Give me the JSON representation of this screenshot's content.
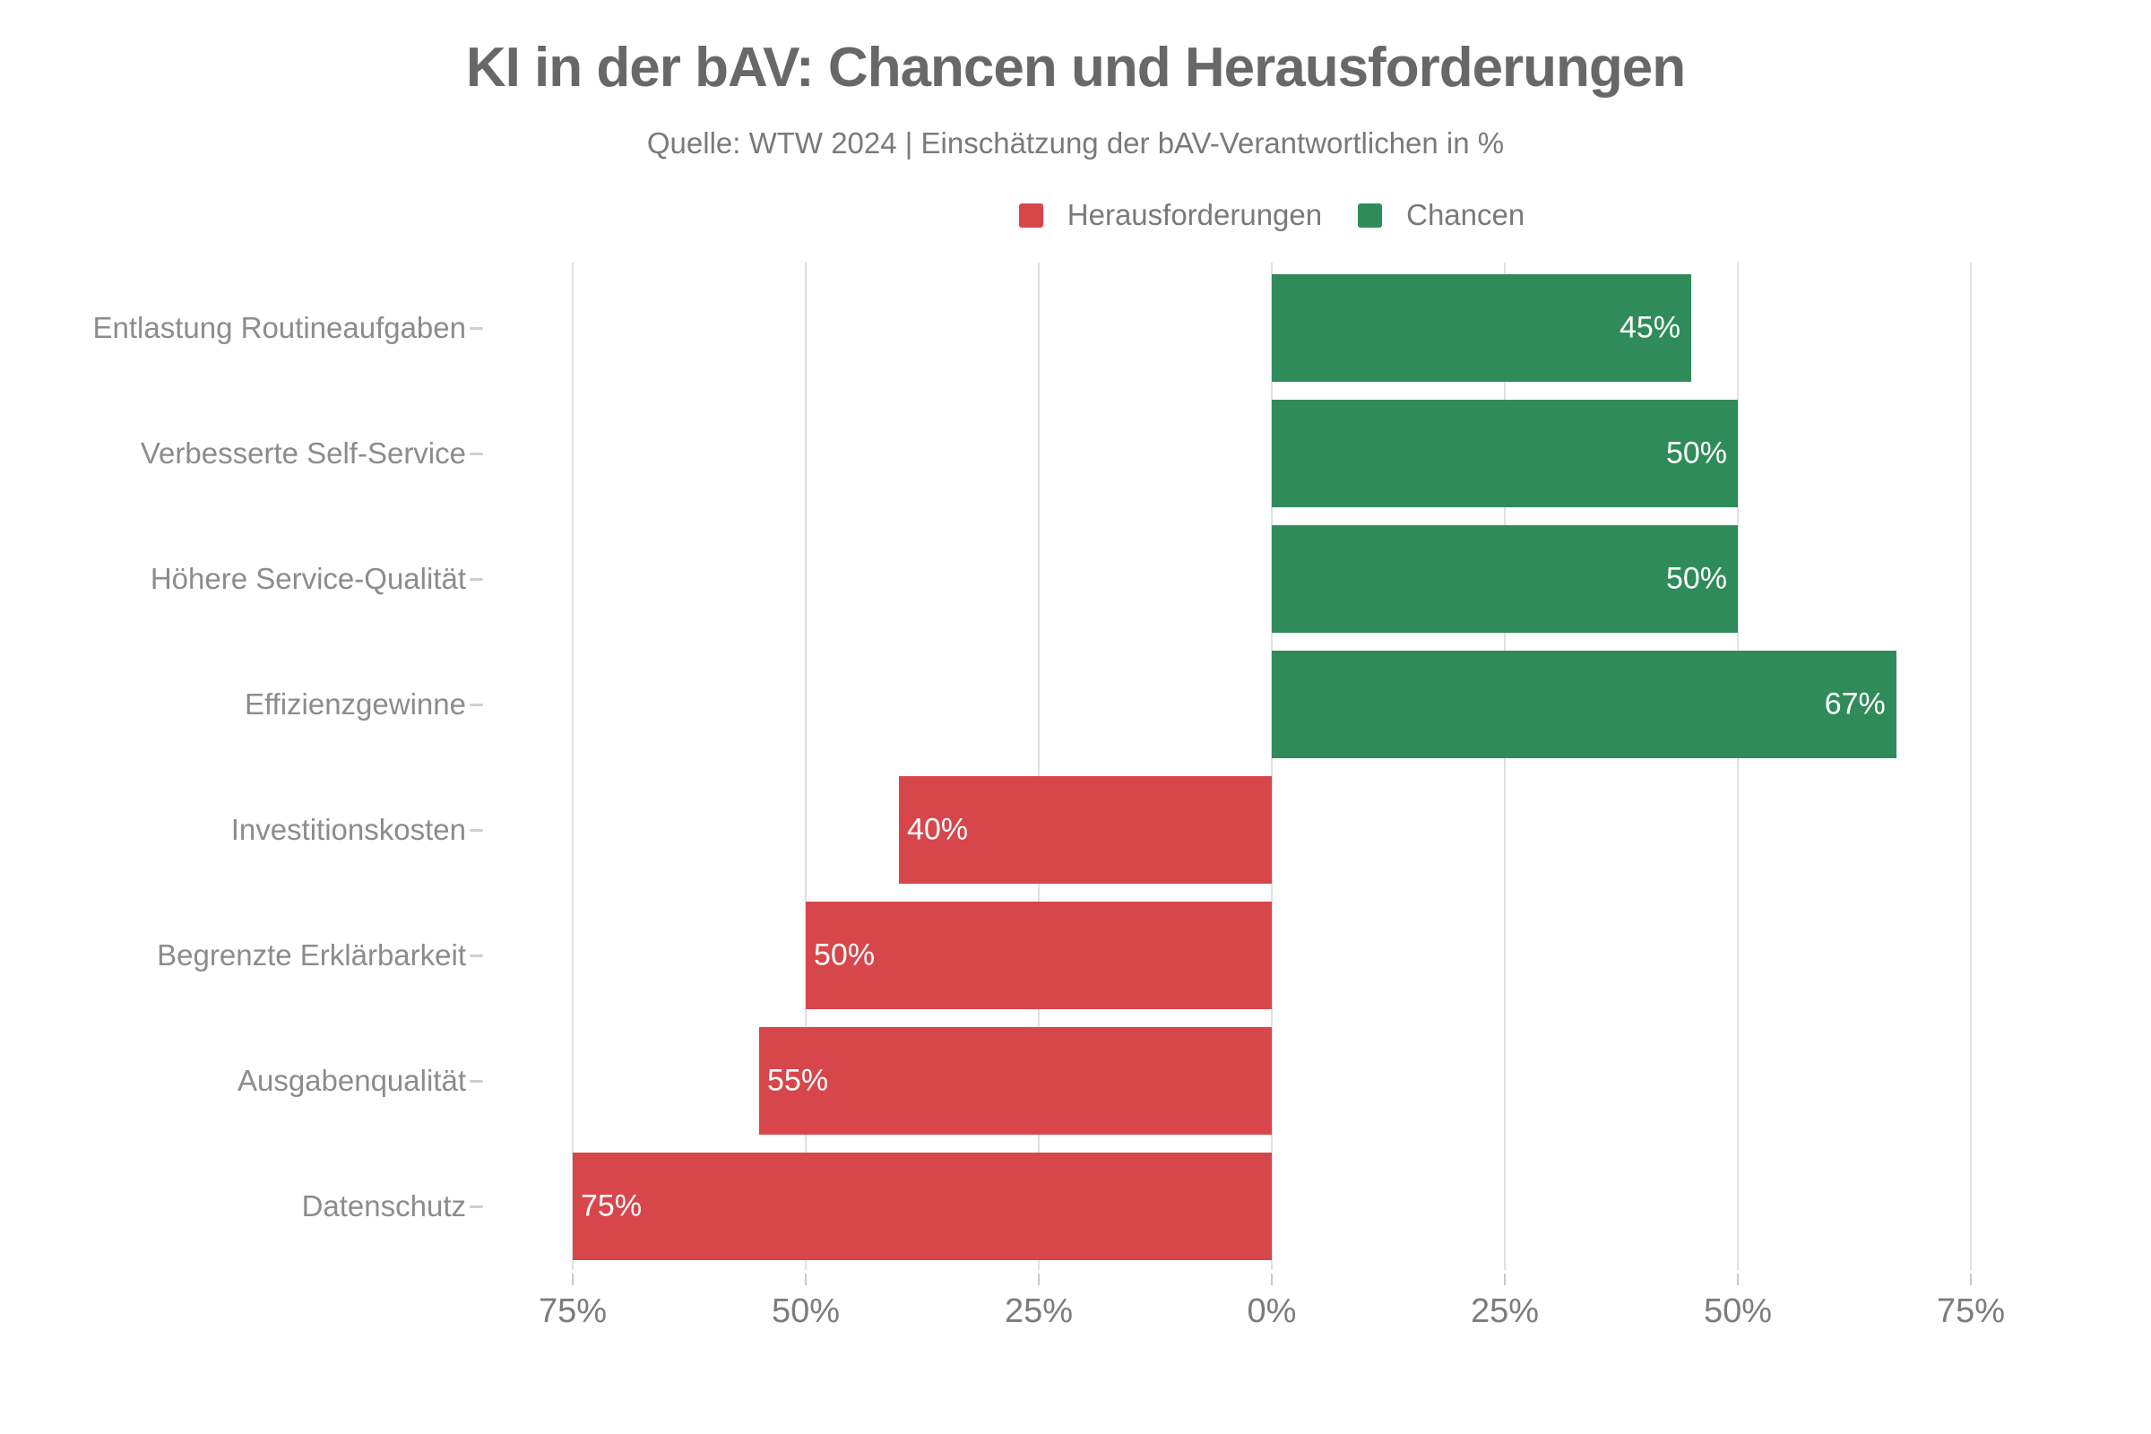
{
  "header": {
    "title": "KI in der bAV: Chancen und Herausforderungen",
    "subtitle": "Quelle: WTW 2024 | Einschätzung der bAV-Verantwortlichen in %"
  },
  "legend": {
    "position": "top-center",
    "items": [
      {
        "label": "Herausforderungen",
        "color": "#d6464b"
      },
      {
        "label": "Chancen",
        "color": "#2f8c5a"
      }
    ]
  },
  "chart_data": {
    "type": "bar",
    "variant": "diverging-horizontal",
    "title": "KI in der bAV: Chancen und Herausforderungen",
    "subtitle": "Quelle: WTW 2024 | Einschätzung der bAV-Verantwortlichen in %",
    "unit": "%",
    "grid": true,
    "categories": [
      "Entlastung Routineaufgaben",
      "Verbesserte Self-Service",
      "Höhere Service-Qualität",
      "Effizienzgewinne",
      "Investitionskosten",
      "Begrenzte Erklärbarkeit",
      "Ausgabenqualität",
      "Datenschutz"
    ],
    "series": [
      {
        "name": "Chancen",
        "side": "right",
        "color": "#2f8c5a",
        "values": [
          45,
          50,
          50,
          67,
          null,
          null,
          null,
          null
        ]
      },
      {
        "name": "Herausforderungen",
        "side": "left",
        "color": "#d6464b",
        "values": [
          null,
          null,
          null,
          null,
          40,
          50,
          55,
          75
        ]
      }
    ],
    "bar_labels": [
      "45%",
      "50%",
      "50%",
      "67%",
      "40%",
      "50%",
      "55%",
      "75%"
    ],
    "xaxis": {
      "tick_labels": [
        "75%",
        "50%",
        "25%",
        "0%",
        "25%",
        "50%",
        "75%"
      ],
      "tick_values": [
        -75,
        -50,
        -25,
        0,
        25,
        50,
        75
      ],
      "range": [
        -75,
        75
      ]
    }
  },
  "style_colors": {
    "background": "#ffffff",
    "title": "#686868",
    "subtitle": "#7a7a7a",
    "category_label": "#8c8c8c",
    "axis_tick_label": "#7c7c7c",
    "gridline": "#e0e0e0",
    "tick_mark": "#c9c9c9",
    "bar_value_label": "#ffffff",
    "chancen_green": "#2f8c5a",
    "herausforderungen_red": "#d6464b"
  }
}
